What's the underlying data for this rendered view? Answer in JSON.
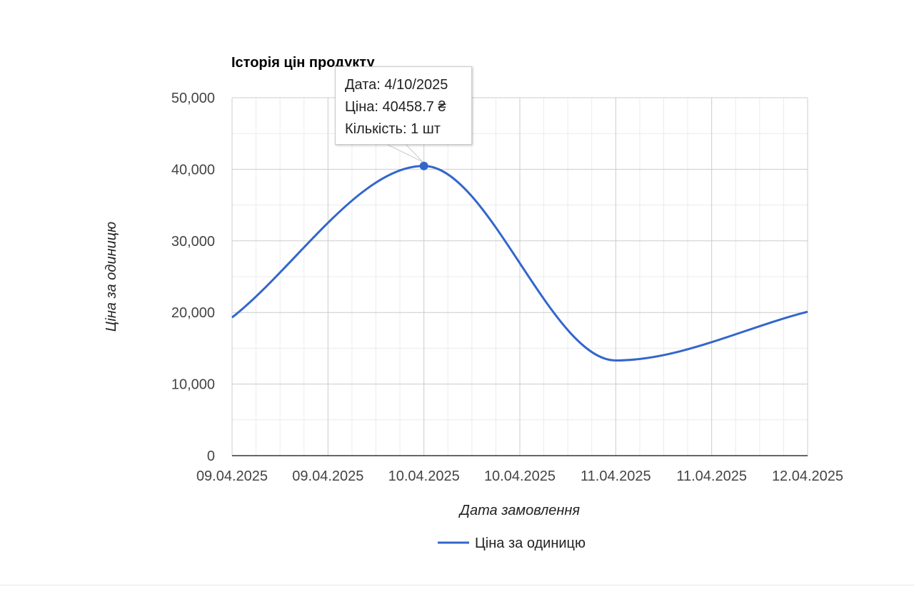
{
  "chart_data": {
    "type": "line",
    "title": "Історія цін продукту",
    "xlabel": "Дата замовлення",
    "ylabel": "Ціна за одиницю",
    "x_ticks": [
      "09.04.2025",
      "09.04.2025",
      "10.04.2025",
      "10.04.2025",
      "11.04.2025",
      "11.04.2025",
      "12.04.2025"
    ],
    "x_range": [
      "2025-04-09T00:00",
      "2025-04-12T00:00"
    ],
    "ylim": [
      0,
      50000
    ],
    "y_ticks": [
      "0",
      "10,000",
      "20,000",
      "30,000",
      "40,000",
      "50,000"
    ],
    "grid": true,
    "legend_position": "bottom",
    "colors": {
      "series": "#3366cc",
      "grid": "#cccccc",
      "minor_grid": "#ebebeb",
      "axis": "#333333"
    },
    "series": [
      {
        "name": "Ціна за одиницю",
        "points": [
          {
            "x": "2025-04-09T00:00",
            "y": 19300
          },
          {
            "x": "2025-04-10T00:00",
            "y": 40458.7
          },
          {
            "x": "2025-04-11T00:00",
            "y": 13300
          },
          {
            "x": "2025-04-12T00:00",
            "y": 20100
          }
        ]
      }
    ]
  },
  "tooltip": {
    "date_line": "Дата: 4/10/2025",
    "price_line": "Ціна: 40458.7 ₴",
    "qty_line": "Кількість: 1 шт"
  }
}
